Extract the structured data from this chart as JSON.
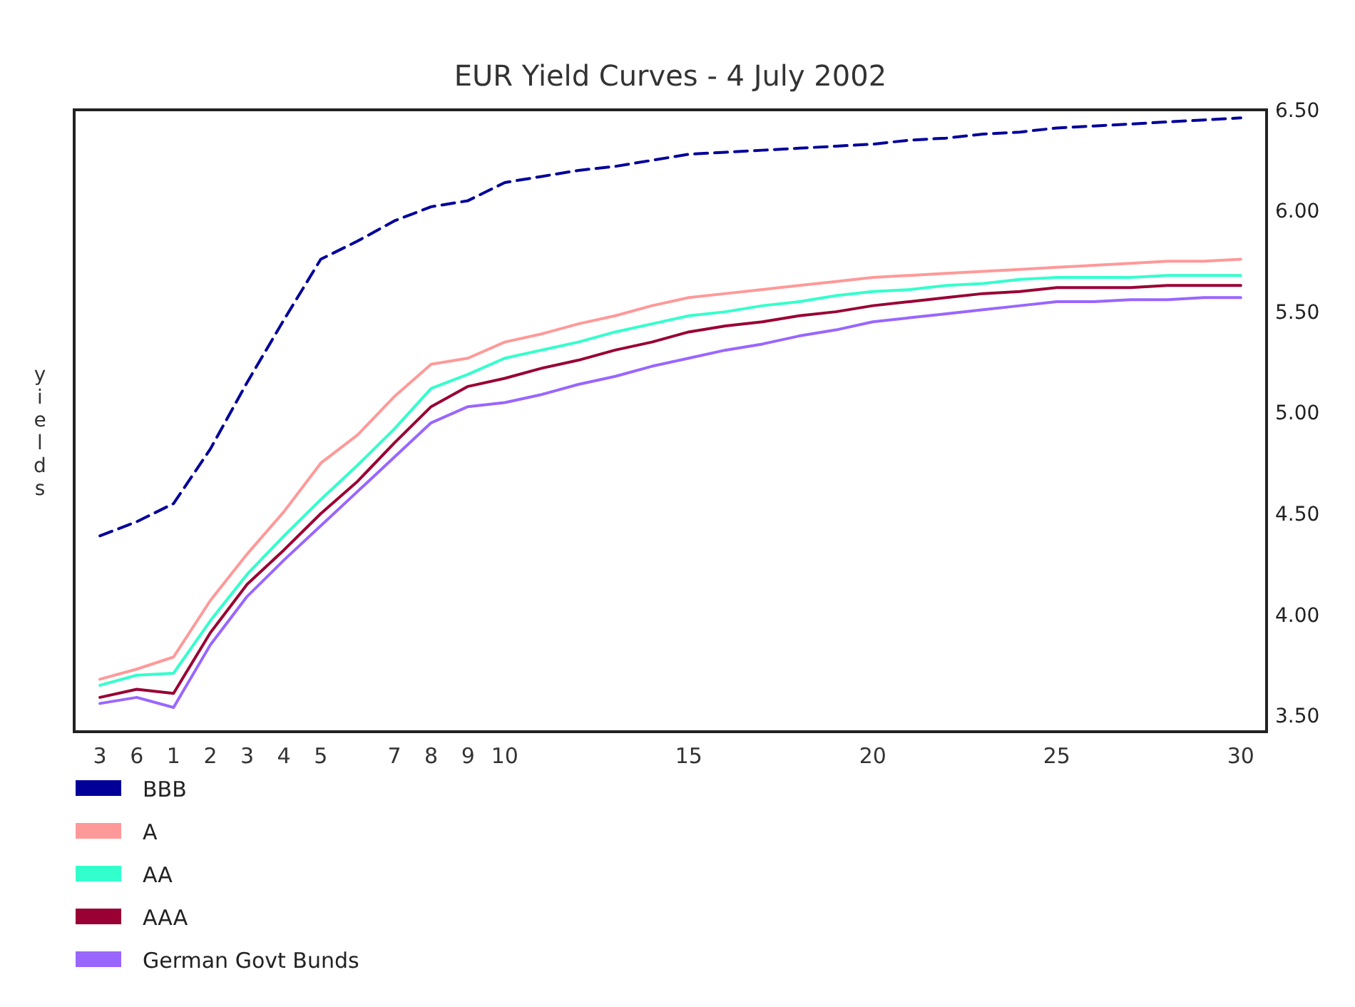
{
  "chart_data": {
    "type": "line",
    "title": "EUR Yield Curves -  4 July 2002",
    "ylabel": "yields",
    "categories": [
      "3",
      "6",
      "1",
      "2",
      "3",
      "4",
      "5",
      null,
      "7",
      "8",
      "9",
      "10",
      null,
      null,
      null,
      null,
      "15",
      null,
      null,
      null,
      null,
      "20",
      null,
      null,
      null,
      null,
      "25",
      null,
      null,
      null,
      null,
      "30"
    ],
    "series": [
      {
        "name": "BBB",
        "color": "#000099",
        "line_style": "dashed",
        "values": [
          4.39,
          4.46,
          4.55,
          4.82,
          5.15,
          5.46,
          5.76,
          5.85,
          5.95,
          6.02,
          6.05,
          6.14,
          6.17,
          6.2,
          6.22,
          6.25,
          6.28,
          6.29,
          6.3,
          6.31,
          6.32,
          6.33,
          6.35,
          6.36,
          6.38,
          6.39,
          6.41,
          6.42,
          6.43,
          6.44,
          6.45,
          6.46
        ]
      },
      {
        "name": "A",
        "color": "#ff9999",
        "values": [
          3.68,
          3.73,
          3.79,
          4.07,
          4.3,
          4.51,
          4.75,
          4.89,
          5.08,
          5.24,
          5.27,
          5.35,
          5.39,
          5.44,
          5.48,
          5.53,
          5.57,
          5.59,
          5.61,
          5.63,
          5.65,
          5.67,
          5.68,
          5.69,
          5.7,
          5.71,
          5.72,
          5.73,
          5.74,
          5.75,
          5.75,
          5.76
        ]
      },
      {
        "name": "AA",
        "color": "#33ffcc",
        "values": [
          3.65,
          3.7,
          3.71,
          3.97,
          4.2,
          4.39,
          4.57,
          4.74,
          4.92,
          5.12,
          5.19,
          5.27,
          5.31,
          5.35,
          5.4,
          5.44,
          5.48,
          5.5,
          5.53,
          5.55,
          5.58,
          5.6,
          5.61,
          5.63,
          5.64,
          5.66,
          5.67,
          5.67,
          5.67,
          5.68,
          5.68,
          5.68
        ]
      },
      {
        "name": "AAA",
        "color": "#990033",
        "values": [
          3.59,
          3.63,
          3.61,
          3.91,
          4.15,
          4.32,
          4.5,
          4.66,
          4.85,
          5.03,
          5.13,
          5.17,
          5.22,
          5.26,
          5.31,
          5.35,
          5.4,
          5.43,
          5.45,
          5.48,
          5.5,
          5.53,
          5.55,
          5.57,
          5.59,
          5.6,
          5.62,
          5.62,
          5.62,
          5.63,
          5.63,
          5.63
        ]
      },
      {
        "name": "German Govt Bunds",
        "color": "#9966ff",
        "values": [
          3.56,
          3.59,
          3.54,
          3.85,
          4.09,
          4.27,
          4.44,
          4.61,
          4.78,
          4.95,
          5.03,
          5.05,
          5.09,
          5.14,
          5.18,
          5.23,
          5.27,
          5.31,
          5.34,
          5.38,
          5.41,
          5.45,
          5.47,
          5.49,
          5.51,
          5.53,
          5.55,
          5.55,
          5.56,
          5.56,
          5.57,
          5.57
        ]
      }
    ],
    "ylim": [
      3.42,
      6.5
    ],
    "yticks": [
      {
        "value": 3.5,
        "label": "3.50"
      },
      {
        "value": 4,
        "label": "4.00"
      },
      {
        "value": 4.5,
        "label": "4.50"
      },
      {
        "value": 5,
        "label": "5.00"
      },
      {
        "value": 5.5,
        "label": "5.50"
      },
      {
        "value": 6,
        "label": "6.00"
      },
      {
        "value": 6.5,
        "label": "6.50"
      }
    ],
    "grid": false,
    "legend": "bottom",
    "marker": "none",
    "line_style": "solid"
  }
}
